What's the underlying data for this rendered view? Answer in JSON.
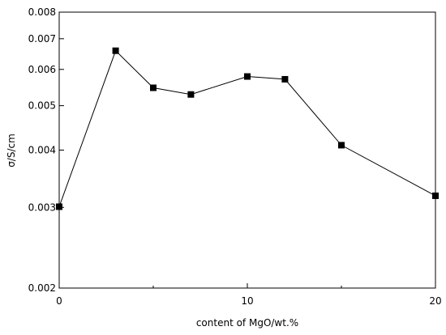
{
  "chart_data": {
    "type": "line",
    "xlabel": "content of MgO/wt.%",
    "ylabel": "σ/S/cm",
    "yscale": "log",
    "xlim": [
      0,
      20
    ],
    "ylim": [
      0.002,
      0.008
    ],
    "x_ticks": [
      0,
      10,
      20
    ],
    "x_tick_labels": [
      "0",
      "10",
      "20"
    ],
    "y_ticks": [
      0.002,
      0.003,
      0.004,
      0.005,
      0.006,
      0.007,
      0.008
    ],
    "y_tick_labels": [
      "0.002",
      "0.003",
      "0.004",
      "0.005",
      "0.006",
      "0.007",
      "0.008"
    ],
    "grid": false,
    "series": [
      {
        "x": [
          0,
          3,
          5,
          7,
          10,
          12,
          15,
          20
        ],
        "y": [
          0.00301,
          0.00659,
          0.00547,
          0.00529,
          0.00579,
          0.00571,
          0.0041,
          0.00318
        ]
      }
    ]
  }
}
